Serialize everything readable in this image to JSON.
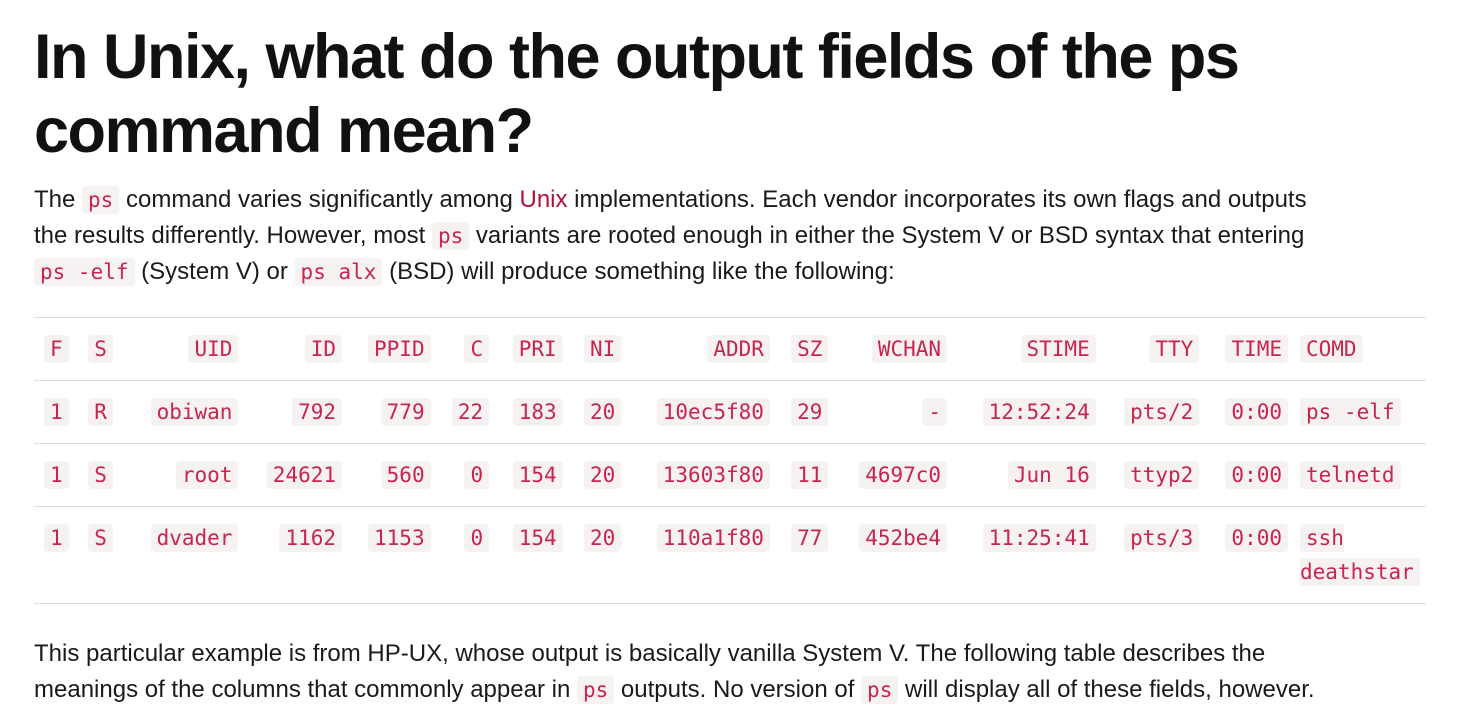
{
  "page": {
    "title": "In Unix, what do the output fields of the ps command mean?",
    "intro": [
      {
        "t": "text",
        "v": "The "
      },
      {
        "t": "code",
        "v": "ps"
      },
      {
        "t": "text",
        "v": " command varies significantly among "
      },
      {
        "t": "link",
        "v": "Unix"
      },
      {
        "t": "text",
        "v": " implementations. Each vendor incorporates its own flags and outputs the results differently. However, most "
      },
      {
        "t": "code",
        "v": "ps"
      },
      {
        "t": "text",
        "v": " variants are rooted enough in either the System V or BSD syntax that entering "
      },
      {
        "t": "code",
        "v": "ps -elf"
      },
      {
        "t": "text",
        "v": " (System V) or "
      },
      {
        "t": "code",
        "v": "ps alx"
      },
      {
        "t": "text",
        "v": " (BSD) will produce something like the following:"
      }
    ],
    "table": {
      "headers": [
        "F",
        "S",
        "UID",
        "ID",
        "PPID",
        "C",
        "PRI",
        "NI",
        "ADDR",
        "SZ",
        "WCHAN",
        "STIME",
        "TTY",
        "TIME",
        "COMD"
      ],
      "rows": [
        [
          "1",
          "R",
          "obiwan",
          "792",
          "779",
          "22",
          "183",
          "20",
          "10ec5f80",
          "29",
          "-",
          "12:52:24",
          "pts/2",
          "0:00",
          "ps -elf"
        ],
        [
          "1",
          "S",
          "root",
          "24621",
          "560",
          "0",
          "154",
          "20",
          "13603f80",
          "11",
          "4697c0",
          "Jun 16",
          "ttyp2",
          "0:00",
          "telnetd"
        ],
        [
          "1",
          "S",
          "dvader",
          "1162",
          "1153",
          "0",
          "154",
          "20",
          "110a1f80",
          "77",
          "452be4",
          "11:25:41",
          "pts/3",
          "0:00",
          "ssh deathstar"
        ]
      ]
    },
    "after": [
      {
        "t": "text",
        "v": "This particular example is from HP-UX, whose output is basically vanilla System V. The following table describes the meanings of the columns that commonly appear in "
      },
      {
        "t": "code",
        "v": "ps"
      },
      {
        "t": "text",
        "v": " outputs. No version of "
      },
      {
        "t": "code",
        "v": "ps"
      },
      {
        "t": "text",
        "v": " will display all of these fields, however."
      }
    ]
  },
  "colors": {
    "code_text": "#c7254e",
    "code_bg": "#f7f2f2",
    "link": "#b0123a",
    "rule": "#dcdcdc",
    "body_text": "#1a1a1a"
  }
}
